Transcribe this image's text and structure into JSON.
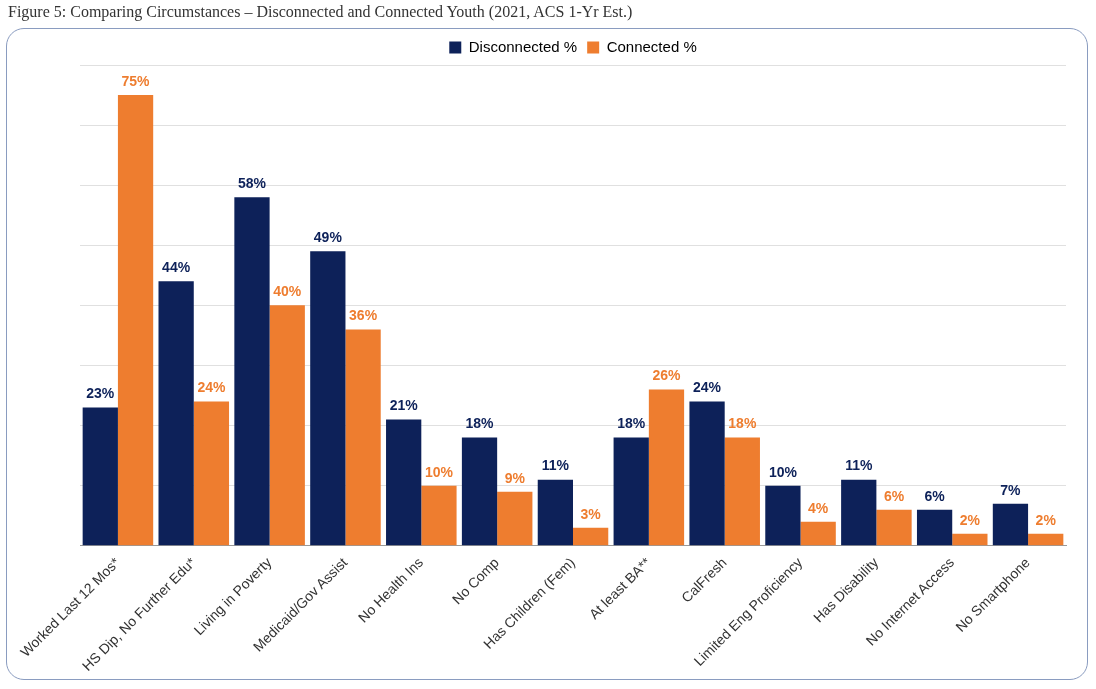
{
  "chart_data": {
    "type": "bar",
    "title": "Figure 5: Comparing Circumstances – Disconnected and Connected Youth (2021, ACS 1-Yr Est.)",
    "categories": [
      "Worked Last 12 Mos*",
      "HS Dip, No Further Edu*",
      "Living in Poverty",
      "Medicaid/Gov Assist",
      "No Health Ins",
      "No Comp",
      "Has Children (Fem)",
      "At least BA**",
      "CalFresh",
      "Limited Eng Proficiency",
      "Has Disability",
      "No Internet Access",
      "No Smartphone"
    ],
    "series": [
      {
        "name": "Disconnected %",
        "color": "#0d2159",
        "values": [
          23,
          44,
          58,
          49,
          21,
          18,
          11,
          18,
          24,
          10,
          11,
          6,
          7
        ],
        "value_labels": [
          "23%",
          "44%",
          "58%",
          "49%",
          "21%",
          "18%",
          "11%",
          "18%",
          "24%",
          "10%",
          "11%",
          "6%",
          "7%"
        ]
      },
      {
        "name": "Connected %",
        "color": "#ee7d2f",
        "values": [
          75,
          24,
          40,
          36,
          10,
          9,
          3,
          26,
          18,
          4,
          6,
          2,
          2
        ],
        "value_labels": [
          "75%",
          "24%",
          "40%",
          "36%",
          "10%",
          "9%",
          "3%",
          "26%",
          "18%",
          "4%",
          "6%",
          "2%",
          "2%"
        ]
      }
    ],
    "ylim": [
      0,
      80
    ],
    "yticks": [
      {
        "value": 0,
        "label": null
      },
      {
        "value": 10,
        "label": null
      },
      {
        "value": 20,
        "label": null
      },
      {
        "value": 30,
        "label": null
      },
      {
        "value": 40,
        "label": null
      },
      {
        "value": 50,
        "label": null
      },
      {
        "value": 60,
        "label": null
      },
      {
        "value": 70,
        "label": null
      },
      {
        "value": 80,
        "label": null
      }
    ],
    "tick_labels": "x",
    "grid": "y",
    "legend": "top"
  }
}
